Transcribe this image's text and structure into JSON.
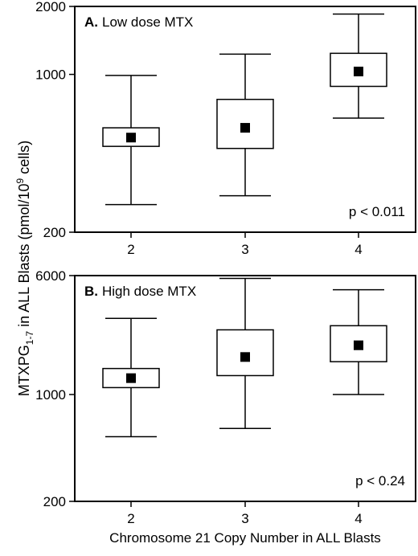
{
  "chart_data": [
    {
      "type": "box",
      "panel_letter": "A.",
      "panel_title": "Low dose MTX",
      "annotation": "p < 0.011",
      "y_scale": "log",
      "ylim": [
        200,
        2000
      ],
      "yticks": [
        {
          "value": 200,
          "label": "200"
        },
        {
          "value": 1000,
          "label": "1000"
        },
        {
          "value": 2000,
          "label": "2000"
        }
      ],
      "categories": [
        "2",
        "3",
        "4"
      ],
      "boxes": [
        {
          "category": "2",
          "whisker_low": 265,
          "q1": 480,
          "median_marker": 525,
          "q3": 580,
          "whisker_high": 990
        },
        {
          "category": "3",
          "whisker_low": 290,
          "q1": 470,
          "median_marker": 580,
          "q3": 775,
          "whisker_high": 1230
        },
        {
          "category": "4",
          "whisker_low": 640,
          "q1": 885,
          "median_marker": 1030,
          "q3": 1240,
          "whisker_high": 1850
        }
      ]
    },
    {
      "type": "box",
      "panel_letter": "B.",
      "panel_title": "High dose MTX",
      "annotation": "p < 0.24",
      "y_scale": "log",
      "ylim": [
        200,
        6000
      ],
      "yticks": [
        {
          "value": 200,
          "label": "200"
        },
        {
          "value": 1000,
          "label": "1000"
        },
        {
          "value": 6000,
          "label": "6000"
        }
      ],
      "categories": [
        "2",
        "3",
        "4"
      ],
      "boxes": [
        {
          "category": "2",
          "whisker_low": 530,
          "q1": 1110,
          "median_marker": 1280,
          "q3": 1480,
          "whisker_high": 3150
        },
        {
          "category": "3",
          "whisker_low": 600,
          "q1": 1330,
          "median_marker": 1760,
          "q3": 2650,
          "whisker_high": 5750
        },
        {
          "category": "4",
          "whisker_low": 1000,
          "q1": 1640,
          "median_marker": 2100,
          "q3": 2820,
          "whisker_high": 4850
        }
      ]
    }
  ],
  "shared_axes": {
    "ylabel_main": "MTXPG",
    "ylabel_sub": "1-7",
    "ylabel_rest": " in ALL Blasts (pmol/10",
    "ylabel_sup": "9",
    "ylabel_end": " cells)",
    "xlabel": "Chromosome 21 Copy Number in ALL Blasts"
  }
}
